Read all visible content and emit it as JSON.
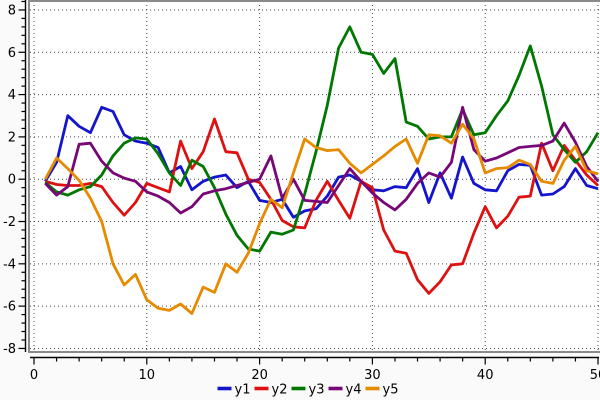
{
  "chart_data": {
    "type": "line",
    "title": "",
    "xlabel": "",
    "ylabel": "",
    "xlim": [
      0,
      50.4
    ],
    "ylim": [
      -8.2,
      8.5
    ],
    "x_ticks": [
      0,
      10,
      20,
      30,
      40,
      50
    ],
    "y_ticks": [
      8,
      6,
      4,
      2,
      0,
      -2,
      -4,
      -6,
      -8
    ],
    "x_minor_step": 2,
    "y_minor_step": 0.4,
    "grid": true,
    "legend_position": "bottom-center",
    "colors": {
      "figure_background": "#fafafa",
      "plot_background": "#ffffff",
      "plot_border": "#8a8a8a",
      "grid": "#444444",
      "axis": "#000000",
      "text": "#000000"
    },
    "x": [
      1,
      2,
      3,
      4,
      5,
      6,
      7,
      8,
      9,
      10,
      11,
      12,
      13,
      14,
      15,
      16,
      17,
      18,
      19,
      20,
      21,
      22,
      23,
      24,
      25,
      26,
      27,
      28,
      29,
      30,
      31,
      32,
      33,
      34,
      35,
      36,
      37,
      38,
      39,
      40,
      41,
      42,
      43,
      44,
      45,
      46,
      47,
      48,
      49,
      50
    ],
    "series": [
      {
        "name": "y1",
        "color": "#1414cc",
        "values": [
          -0.1,
          0.8,
          3.0,
          2.5,
          2.2,
          3.4,
          3.2,
          2.1,
          1.8,
          1.7,
          1.5,
          0.3,
          0.6,
          -0.5,
          -0.1,
          0.1,
          0.2,
          -0.4,
          -0.1,
          -1.0,
          -1.1,
          -0.95,
          -1.8,
          -1.5,
          -1.4,
          -0.8,
          0.1,
          0.2,
          -0.1,
          -0.5,
          -0.55,
          -0.35,
          -0.4,
          0.5,
          -1.1,
          0.3,
          -0.9,
          1.05,
          -0.2,
          -0.5,
          -0.55,
          0.4,
          0.7,
          0.65,
          -0.75,
          -0.7,
          -0.35,
          0.5,
          -0.3,
          -0.45
        ]
      },
      {
        "name": "y2",
        "color": "#dd1111",
        "values": [
          -0.1,
          -0.25,
          -0.3,
          -0.3,
          -0.2,
          -0.35,
          -1.1,
          -1.7,
          -1.1,
          -0.2,
          -0.4,
          -0.6,
          1.8,
          0.5,
          1.3,
          2.85,
          1.3,
          1.25,
          0.0,
          -0.15,
          -0.95,
          -1.95,
          -2.25,
          -2.3,
          -1.0,
          -0.1,
          -1.0,
          -1.85,
          -0.1,
          -0.4,
          -2.4,
          -3.4,
          -3.5,
          -4.75,
          -5.4,
          -4.85,
          -4.05,
          -4.0,
          -2.55,
          -1.3,
          -2.3,
          -1.75,
          -0.85,
          -0.8,
          1.7,
          0.4,
          1.6,
          0.9,
          0.2,
          -0.3
        ]
      },
      {
        "name": "y3",
        "color": "#007700",
        "values": [
          -0.15,
          -0.6,
          -0.75,
          -0.5,
          -0.35,
          0.2,
          1.1,
          1.7,
          1.95,
          1.9,
          1.2,
          0.3,
          -0.3,
          0.9,
          0.6,
          -0.4,
          -1.65,
          -2.65,
          -3.3,
          -3.4,
          -2.5,
          -2.6,
          -2.4,
          -0.7,
          1.3,
          3.5,
          6.2,
          7.2,
          6.0,
          5.9,
          5.0,
          5.7,
          2.7,
          2.5,
          1.9,
          2.0,
          2.0,
          3.3,
          2.1,
          2.2,
          3.0,
          3.7,
          4.9,
          6.3,
          4.4,
          2.1,
          1.4,
          0.8,
          1.3,
          2.2
        ]
      },
      {
        "name": "y4",
        "color": "#770677",
        "values": [
          -0.2,
          -0.75,
          -0.35,
          1.65,
          1.7,
          0.85,
          0.3,
          0.05,
          -0.1,
          -0.6,
          -0.8,
          -1.1,
          -1.6,
          -1.3,
          -0.7,
          -0.55,
          -0.45,
          -0.3,
          -0.15,
          0.0,
          1.1,
          -0.9,
          0.0,
          -1.0,
          -1.05,
          -1.1,
          -0.3,
          0.5,
          -0.1,
          -0.65,
          -1.1,
          -1.45,
          -0.95,
          -0.2,
          0.3,
          0.1,
          0.8,
          3.4,
          1.4,
          0.85,
          1.0,
          1.25,
          1.5,
          1.55,
          1.6,
          1.8,
          2.65,
          1.75,
          0.6,
          -0.1
        ]
      },
      {
        "name": "y5",
        "color": "#e68a00",
        "values": [
          0.0,
          1.0,
          0.5,
          -0.05,
          -0.9,
          -2.0,
          -4.0,
          -5.0,
          -4.5,
          -5.7,
          -6.1,
          -6.2,
          -5.9,
          -6.35,
          -5.1,
          -5.35,
          -4.0,
          -4.4,
          -3.5,
          -2.1,
          -0.95,
          -1.35,
          0.3,
          1.9,
          1.5,
          1.35,
          1.4,
          0.75,
          0.3,
          0.7,
          1.1,
          1.55,
          1.9,
          0.75,
          2.1,
          2.05,
          1.7,
          2.6,
          1.9,
          0.3,
          0.5,
          0.55,
          0.9,
          0.7,
          -0.1,
          -0.2,
          0.9,
          1.55,
          0.4,
          0.25
        ]
      }
    ],
    "legend": {
      "items": [
        "y1",
        "y2",
        "y3",
        "y4",
        "y5"
      ]
    }
  }
}
